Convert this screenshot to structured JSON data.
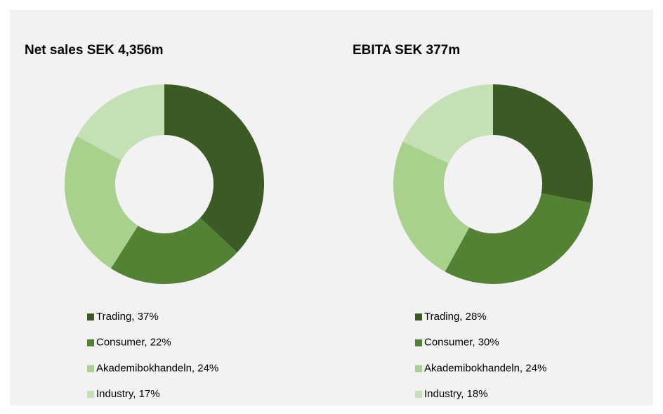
{
  "chart_data": [
    {
      "type": "donut",
      "title": "Net sales SEK 4,356m",
      "categories": [
        "Trading, 37%",
        "Consumer, 22%",
        "Akademibokhandeln, 24%",
        "Industry, 17%"
      ],
      "values": [
        37,
        22,
        24,
        17
      ],
      "colors": [
        "#3b5a24",
        "#548235",
        "#a9d18e",
        "#c5e0b4"
      ]
    },
    {
      "type": "donut",
      "title": "EBITA SEK 377m",
      "categories": [
        "Trading, 28%",
        "Consumer, 30%",
        "Akademibokhandeln, 24%",
        "Industry, 18%"
      ],
      "values": [
        28,
        30,
        24,
        18
      ],
      "colors": [
        "#3b5a24",
        "#548235",
        "#a9d18e",
        "#c5e0b4"
      ]
    }
  ]
}
